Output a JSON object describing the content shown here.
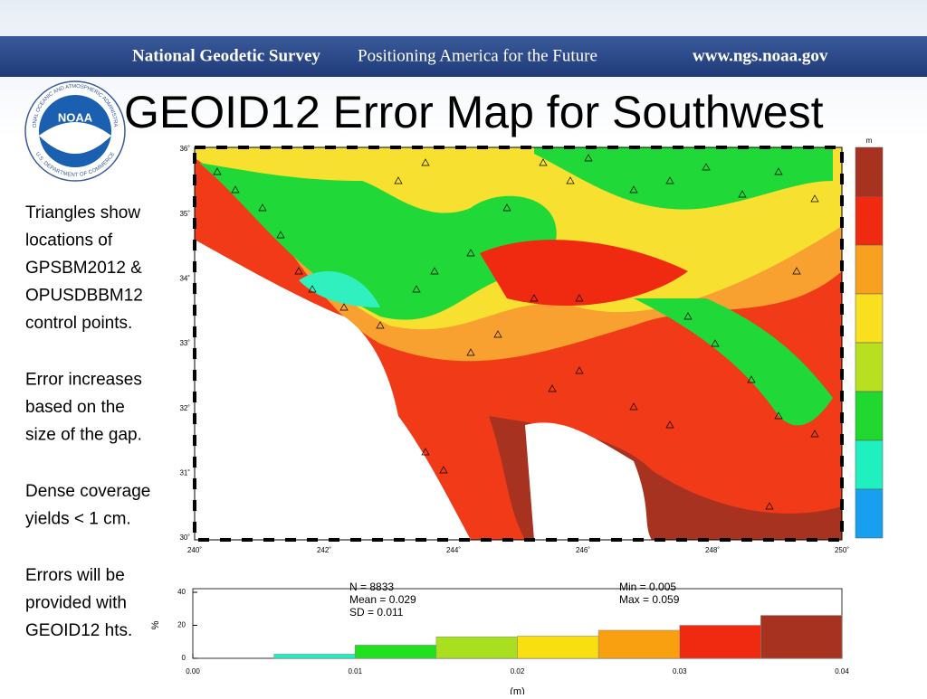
{
  "header": {
    "organization": "National Geodetic Survey",
    "tagline": "Positioning America for the Future",
    "url": "www.ngs.noaa.gov"
  },
  "logo": {
    "center": "NOAA",
    "top_ring": "NATIONAL OCEANIC AND ATMOSPHERIC ADMINISTRATION",
    "bottom_ring": "U.S. DEPARTMENT OF COMMERCE"
  },
  "title": "GEOID12 Error Map for Southwest",
  "notes": [
    [
      "Triangles show",
      "locations of",
      "GPSBM2012 &",
      "OPUSDBBM12",
      "control points."
    ],
    [
      "Error increases",
      "based on the",
      "size of the gap."
    ],
    [
      "Dense coverage",
      "yields < 1 cm."
    ],
    [
      "Errors will be",
      "provided with",
      "GEOID12 hts."
    ]
  ],
  "map": {
    "xticks": [
      "240˚",
      "242˚",
      "244˚",
      "246˚",
      "248˚",
      "250˚"
    ],
    "yticks": [
      "36˚",
      "35˚",
      "34˚",
      "33˚",
      "32˚",
      "31˚",
      "30˚"
    ],
    "colorbar_unit": "m",
    "colorbar_colors": [
      "#a83220",
      "#f02a10",
      "#f8a020",
      "#f8e020",
      "#b8e020",
      "#20d830",
      "#20f0c0",
      "#18a0f0"
    ]
  },
  "chart_data": {
    "type": "histogram",
    "bins": [
      0,
      0.005,
      0.01,
      0.015,
      0.02,
      0.025,
      0.03,
      0.035,
      0.04
    ],
    "values": [
      0,
      2.5,
      8,
      13,
      13.5,
      17,
      20,
      26
    ],
    "colors": [
      "#20f0c0",
      "#20f0c0",
      "#20e020",
      "#a8e020",
      "#f8e010",
      "#f8a010",
      "#f02a10",
      "#a83220"
    ],
    "xlim": [
      0,
      0.04
    ],
    "xticks": [
      {
        "value": 0,
        "label": "0.00"
      },
      {
        "value": 0.01,
        "label": "0.01"
      },
      {
        "value": 0.02,
        "label": "0.02"
      },
      {
        "value": 0.03,
        "label": "0.03"
      },
      {
        "value": 0.04,
        "label": "0.04"
      }
    ],
    "ylim": [
      0,
      40
    ],
    "yticks": [
      0,
      20,
      40
    ],
    "ylabel": "%",
    "xlabel": "(m)",
    "annotations": [
      "N =  8833",
      "Mean = 0.029",
      "SD = 0.011",
      "Min = 0.005",
      "Max = 0.059"
    ]
  }
}
